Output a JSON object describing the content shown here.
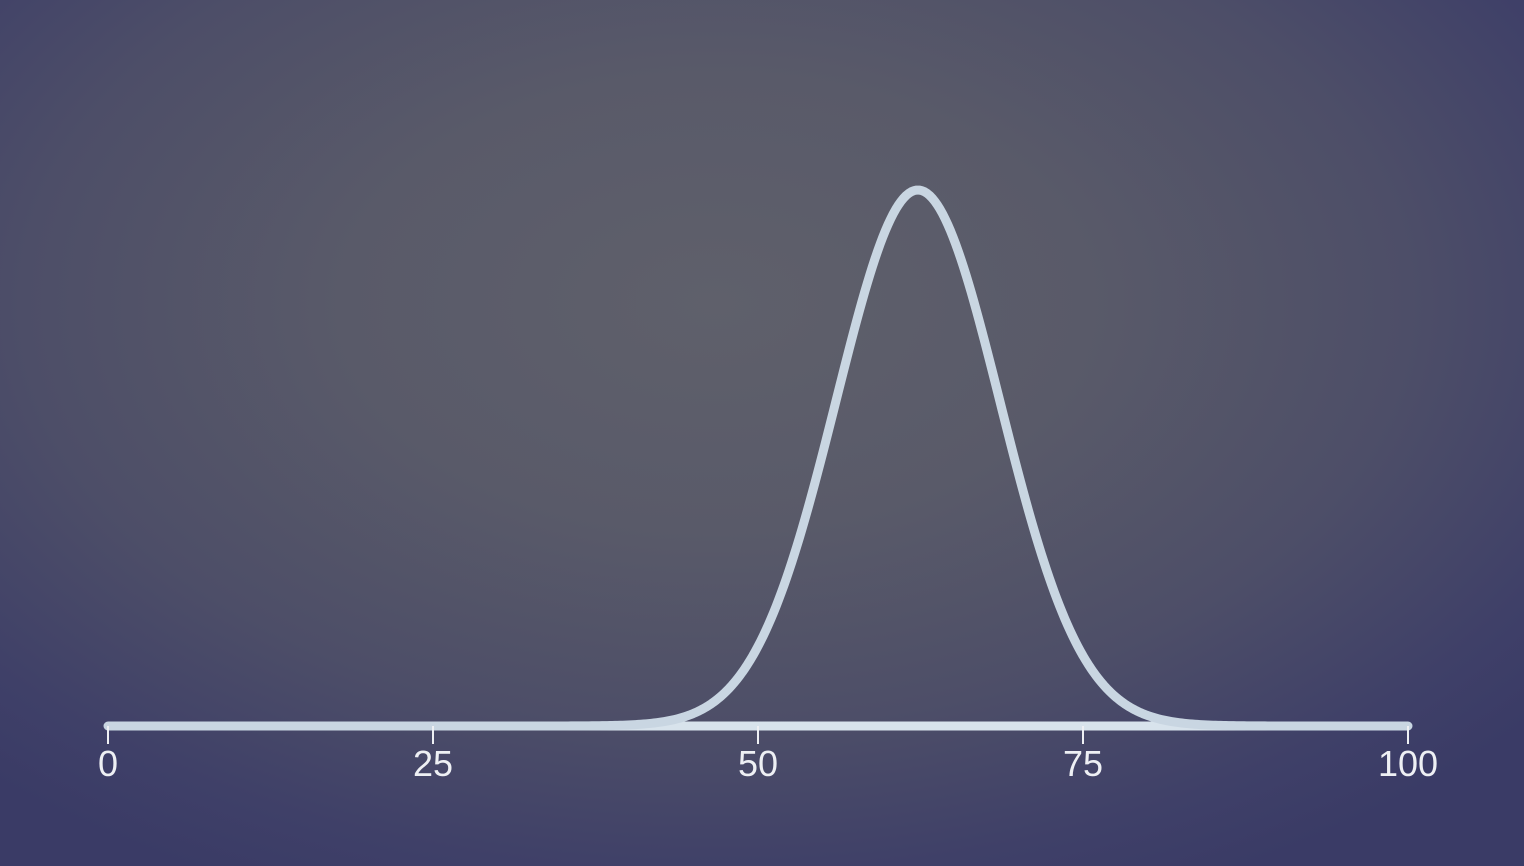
{
  "chart_data": {
    "type": "line",
    "title": "",
    "xlabel": "",
    "ylabel": "",
    "xlim": [
      0,
      100
    ],
    "x_ticks": [
      {
        "value": 0,
        "label": "0"
      },
      {
        "value": 25,
        "label": "25"
      },
      {
        "value": 50,
        "label": "50"
      },
      {
        "value": 75,
        "label": "75"
      },
      {
        "value": 100,
        "label": "100"
      }
    ],
    "grid": false,
    "series": [
      {
        "distribution": "normal",
        "mean": 62.3,
        "std_dev": 6.3,
        "x_range": [
          0,
          100
        ],
        "peak_at_x": 62.3
      }
    ],
    "colors": {
      "curve": "#c9d6e2",
      "axis": "#d8e3ec",
      "tick_text": "#eef0f4"
    }
  }
}
